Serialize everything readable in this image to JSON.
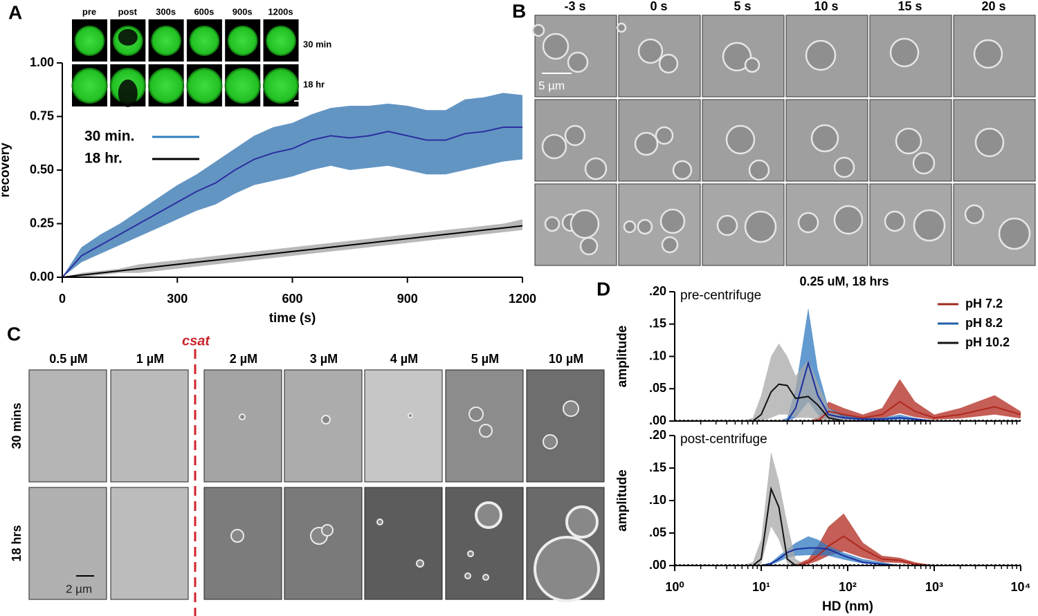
{
  "panel_labels": [
    "A",
    "B",
    "C",
    "D"
  ],
  "panel_a_inset": {
    "columns": [
      "pre",
      "post",
      "300s",
      "600s",
      "900s",
      "1200s"
    ],
    "rows": [
      "30 min",
      "18 hr"
    ]
  },
  "panel_b": {
    "columns": [
      "-3 s",
      "0 s",
      "5 s",
      "10 s",
      "15 s",
      "20 s"
    ],
    "scale_bar": "5 µm",
    "caption": "0.25 uM, 18 hrs"
  },
  "panel_c": {
    "columns": [
      "0.5 µM",
      "1 µM",
      "2 µM",
      "3 µM",
      "4 µM",
      "5 µM",
      "10 µM"
    ],
    "threshold": "csat",
    "rows": [
      "30 mins",
      "18 hrs"
    ],
    "scale_bar": "2 µm"
  },
  "chart_data": [
    {
      "type": "line",
      "xlabel": "time (s)",
      "ylabel": "recovery",
      "xlim": [
        0,
        1200
      ],
      "xticks": [
        0,
        300,
        600,
        900,
        1200
      ],
      "ylim": [
        0,
        1
      ],
      "yticks": [
        {
          "value": 0,
          "label": "0.00"
        },
        {
          "value": 0.25,
          "label": "0.25"
        },
        {
          "value": 0.5,
          "label": "0.50"
        },
        {
          "value": 0.75,
          "label": "0.75"
        },
        {
          "value": 1,
          "label": "1.00"
        }
      ],
      "legend": "upper left",
      "x": [
        0,
        50,
        100,
        150,
        200,
        250,
        300,
        350,
        400,
        450,
        500,
        550,
        600,
        650,
        700,
        750,
        800,
        850,
        900,
        950,
        1000,
        1050,
        1100,
        1150,
        1200
      ],
      "series": [
        {
          "name": "30 min.",
          "color": "#2b2f9e",
          "band_color": "#5b8fc0",
          "legend_color": "#2e7fc0",
          "values": [
            0,
            0.1,
            0.15,
            0.2,
            0.25,
            0.3,
            0.35,
            0.4,
            0.44,
            0.5,
            0.55,
            0.58,
            0.6,
            0.64,
            0.66,
            0.65,
            0.66,
            0.68,
            0.66,
            0.64,
            0.64,
            0.67,
            0.68,
            0.7,
            0.7
          ],
          "lower": [
            0,
            0.07,
            0.11,
            0.15,
            0.19,
            0.23,
            0.27,
            0.31,
            0.34,
            0.39,
            0.43,
            0.45,
            0.47,
            0.5,
            0.52,
            0.5,
            0.51,
            0.52,
            0.5,
            0.48,
            0.48,
            0.5,
            0.52,
            0.54,
            0.55
          ],
          "upper": [
            0,
            0.14,
            0.2,
            0.25,
            0.31,
            0.37,
            0.43,
            0.48,
            0.54,
            0.6,
            0.66,
            0.7,
            0.72,
            0.76,
            0.79,
            0.8,
            0.8,
            0.81,
            0.8,
            0.78,
            0.78,
            0.83,
            0.84,
            0.86,
            0.85
          ]
        },
        {
          "name": "18 hr.",
          "color": "#000000",
          "band_color": "#b4b4b4",
          "legend_color": "#000000",
          "values": [
            0,
            0.01,
            0.02,
            0.03,
            0.04,
            0.05,
            0.06,
            0.07,
            0.08,
            0.09,
            0.1,
            0.11,
            0.12,
            0.13,
            0.14,
            0.15,
            0.16,
            0.17,
            0.18,
            0.19,
            0.2,
            0.21,
            0.22,
            0.23,
            0.24
          ],
          "lower": [
            0,
            0,
            0.01,
            0.02,
            0.02,
            0.03,
            0.04,
            0.05,
            0.06,
            0.07,
            0.08,
            0.09,
            0.1,
            0.11,
            0.12,
            0.13,
            0.14,
            0.15,
            0.16,
            0.17,
            0.18,
            0.19,
            0.2,
            0.21,
            0.22
          ],
          "upper": [
            0,
            0.02,
            0.03,
            0.04,
            0.06,
            0.07,
            0.08,
            0.09,
            0.1,
            0.11,
            0.12,
            0.13,
            0.14,
            0.15,
            0.16,
            0.17,
            0.18,
            0.19,
            0.2,
            0.21,
            0.22,
            0.23,
            0.24,
            0.25,
            0.27
          ]
        }
      ]
    },
    {
      "type": "line",
      "title": "pre-centrifuge",
      "ylabel": "amplitude",
      "xscale": "log",
      "xlim": [
        1,
        10000
      ],
      "ylim": [
        0,
        0.2
      ],
      "yticks": [
        {
          "value": 0,
          "label": ".00"
        },
        {
          "value": 0.05,
          "label": ".05"
        },
        {
          "value": 0.1,
          "label": ".10"
        },
        {
          "value": 0.15,
          "label": ".15"
        },
        {
          "value": 0.2,
          "label": ".20"
        }
      ],
      "legend": "upper right",
      "x": [
        1,
        6,
        8,
        10,
        13,
        16,
        20,
        25,
        35,
        45,
        60,
        90,
        150,
        250,
        400,
        600,
        1000,
        2000,
        5000,
        10000
      ],
      "series": [
        {
          "name": "pH 7.2",
          "color": "#b0281e",
          "band_color": "#b0281e",
          "legend_color": "#9e2a1f",
          "values": [
            0,
            0,
            0,
            0,
            0,
            0,
            0,
            0,
            0,
            0,
            0.015,
            0.01,
            0.005,
            0.01,
            0.03,
            0.015,
            0.005,
            0.01,
            0.022,
            0.01
          ],
          "lower": [
            0,
            0,
            0,
            0,
            0,
            0,
            0,
            0,
            0,
            0,
            0.005,
            0.004,
            0.002,
            0.004,
            0.012,
            0.006,
            0.002,
            0.004,
            0.01,
            0.004
          ],
          "upper": [
            0,
            0,
            0,
            0,
            0,
            0,
            0,
            0,
            0,
            0.005,
            0.03,
            0.02,
            0.01,
            0.02,
            0.065,
            0.03,
            0.01,
            0.02,
            0.04,
            0.015
          ]
        },
        {
          "name": "pH 8.2",
          "color": "#1a2ea0",
          "band_color": "#2f78c0",
          "legend_color": "#1f5fa8",
          "values": [
            0,
            0,
            0,
            0,
            0,
            0,
            0,
            0.02,
            0.09,
            0.04,
            0.01,
            0.005,
            0.003,
            0.003,
            0.005,
            0.003,
            0,
            0,
            0,
            0
          ],
          "lower": [
            0,
            0,
            0,
            0,
            0,
            0,
            0,
            0.005,
            0.03,
            0.01,
            0.003,
            0.002,
            0.001,
            0.001,
            0.002,
            0.001,
            0,
            0,
            0,
            0
          ],
          "upper": [
            0,
            0,
            0,
            0,
            0,
            0,
            0.005,
            0.05,
            0.175,
            0.08,
            0.02,
            0.01,
            0.005,
            0.005,
            0.01,
            0.005,
            0,
            0,
            0,
            0
          ]
        },
        {
          "name": "pH 10.2",
          "color": "#111111",
          "band_color": "#a8a8a8",
          "legend_color": "#111111",
          "values": [
            0,
            0,
            0,
            0.01,
            0.045,
            0.057,
            0.055,
            0.035,
            0.038,
            0.025,
            0.005,
            0,
            0,
            0,
            0,
            0,
            0,
            0,
            0,
            0
          ],
          "lower": [
            0,
            0,
            0,
            0,
            0.005,
            0.01,
            0.01,
            0.005,
            0.005,
            0.003,
            0,
            0,
            0,
            0,
            0,
            0,
            0,
            0,
            0,
            0
          ],
          "upper": [
            0,
            0,
            0.005,
            0.04,
            0.1,
            0.12,
            0.1,
            0.07,
            0.095,
            0.06,
            0.02,
            0.005,
            0,
            0,
            0,
            0,
            0,
            0,
            0,
            0
          ]
        }
      ]
    },
    {
      "type": "line",
      "title": "post-centrifuge",
      "ylabel": "amplitude",
      "xlabel": "HD (nm)",
      "xscale": "log",
      "xlim": [
        1,
        10000
      ],
      "xticks": [
        {
          "value": 1,
          "label": "10⁰"
        },
        {
          "value": 10,
          "label": "10¹"
        },
        {
          "value": 100,
          "label": "10²"
        },
        {
          "value": 1000,
          "label": "10³"
        },
        {
          "value": 10000,
          "label": "10⁴"
        }
      ],
      "ylim": [
        0,
        0.2
      ],
      "yticks": [
        {
          "value": 0,
          "label": ".00"
        },
        {
          "value": 0.05,
          "label": ".05"
        },
        {
          "value": 0.1,
          "label": ".10"
        },
        {
          "value": 0.15,
          "label": ".15"
        },
        {
          "value": 0.2,
          "label": ".20"
        }
      ],
      "x": [
        1,
        6,
        8,
        10,
        13,
        16,
        20,
        25,
        35,
        45,
        60,
        90,
        150,
        250,
        400,
        600,
        1000,
        2000,
        5000,
        10000
      ],
      "series": [
        {
          "color": "#b0281e",
          "band_color": "#b0281e",
          "values": [
            0,
            0,
            0,
            0,
            0,
            0,
            0,
            0,
            0.005,
            0.015,
            0.03,
            0.045,
            0.025,
            0.01,
            0.008,
            0.002,
            0,
            0,
            0,
            0
          ],
          "lower": [
            0,
            0,
            0,
            0,
            0,
            0,
            0,
            0,
            0.002,
            0.007,
            0.015,
            0.022,
            0.012,
            0.005,
            0.004,
            0.001,
            0,
            0,
            0,
            0
          ],
          "upper": [
            0,
            0,
            0,
            0,
            0,
            0,
            0,
            0.002,
            0.01,
            0.03,
            0.06,
            0.08,
            0.035,
            0.015,
            0.012,
            0.005,
            0,
            0,
            0,
            0
          ]
        },
        {
          "color": "#1a2ea0",
          "band_color": "#2f78c0",
          "values": [
            0,
            0,
            0,
            0,
            0.003,
            0.01,
            0.02,
            0.025,
            0.027,
            0.027,
            0.025,
            0.015,
            0.005,
            0.002,
            0,
            0,
            0,
            0,
            0,
            0
          ],
          "lower": [
            0,
            0,
            0,
            0,
            0.001,
            0.006,
            0.012,
            0.015,
            0.016,
            0.016,
            0.015,
            0.009,
            0.003,
            0.001,
            0,
            0,
            0,
            0,
            0,
            0
          ],
          "upper": [
            0,
            0,
            0,
            0,
            0.005,
            0.015,
            0.025,
            0.035,
            0.045,
            0.04,
            0.03,
            0.02,
            0.01,
            0.005,
            0,
            0,
            0,
            0,
            0,
            0
          ]
        },
        {
          "color": "#111111",
          "band_color": "#a8a8a8",
          "values": [
            0,
            0,
            0,
            0.01,
            0.118,
            0.09,
            0.01,
            0,
            0,
            0,
            0,
            0,
            0,
            0,
            0,
            0,
            0,
            0,
            0,
            0
          ],
          "lower": [
            0,
            0,
            0,
            0.002,
            0.06,
            0.04,
            0.003,
            0,
            0,
            0,
            0,
            0,
            0,
            0,
            0,
            0,
            0,
            0,
            0,
            0
          ],
          "upper": [
            0,
            0,
            0.005,
            0.04,
            0.175,
            0.13,
            0.065,
            0.01,
            0,
            0,
            0,
            0,
            0,
            0,
            0,
            0,
            0,
            0,
            0,
            0
          ]
        }
      ]
    }
  ]
}
